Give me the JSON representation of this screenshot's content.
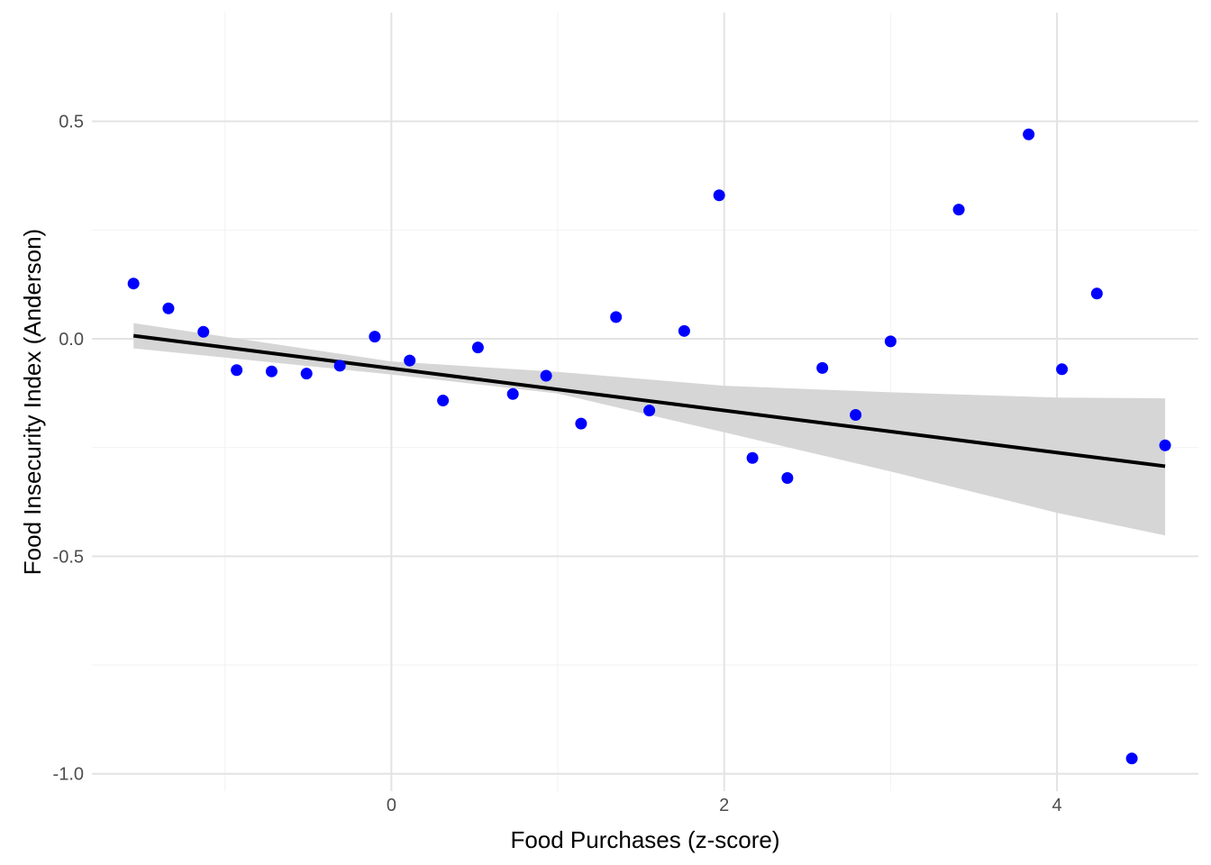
{
  "chart_data": {
    "type": "scatter",
    "title": "",
    "xlabel": "Food Purchases (z-score)",
    "ylabel": "Food Insecurity Index (Anderson)",
    "xlim": [
      -1.8,
      4.85
    ],
    "ylim": [
      -1.04,
      0.75
    ],
    "x_ticks": [
      0,
      2,
      4
    ],
    "x_tick_labels": [
      "0",
      "2",
      "4"
    ],
    "y_ticks": [
      0.5,
      0.0,
      -0.5,
      -1.0
    ],
    "y_tick_labels": [
      "0.5",
      "0.0",
      "-0.5",
      "-1.0"
    ],
    "grid": true,
    "legend": "none",
    "point_color": "#0000ff",
    "line_color": "#000000",
    "band_color": "#d6d6d6",
    "points": [
      {
        "x": -1.55,
        "y": 0.127
      },
      {
        "x": -1.34,
        "y": 0.07
      },
      {
        "x": -1.13,
        "y": 0.016
      },
      {
        "x": -0.93,
        "y": -0.072
      },
      {
        "x": -0.72,
        "y": -0.075
      },
      {
        "x": -0.51,
        "y": -0.08
      },
      {
        "x": -0.31,
        "y": -0.062
      },
      {
        "x": -0.1,
        "y": 0.005
      },
      {
        "x": 0.11,
        "y": -0.05
      },
      {
        "x": 0.31,
        "y": -0.142
      },
      {
        "x": 0.52,
        "y": -0.02
      },
      {
        "x": 0.73,
        "y": -0.127
      },
      {
        "x": 0.93,
        "y": -0.085
      },
      {
        "x": 1.14,
        "y": -0.195
      },
      {
        "x": 1.35,
        "y": 0.05
      },
      {
        "x": 1.55,
        "y": -0.165
      },
      {
        "x": 1.76,
        "y": 0.018
      },
      {
        "x": 1.97,
        "y": 0.33
      },
      {
        "x": 2.17,
        "y": -0.274
      },
      {
        "x": 2.38,
        "y": -0.32
      },
      {
        "x": 2.59,
        "y": -0.067
      },
      {
        "x": 2.79,
        "y": -0.175
      },
      {
        "x": 3.0,
        "y": -0.006
      },
      {
        "x": 3.41,
        "y": 0.297
      },
      {
        "x": 3.83,
        "y": 0.47
      },
      {
        "x": 4.03,
        "y": -0.07
      },
      {
        "x": 4.24,
        "y": 0.104
      },
      {
        "x": 4.45,
        "y": -0.965
      },
      {
        "x": 4.65,
        "y": -0.245
      }
    ],
    "fit_line": {
      "x": [
        -1.55,
        4.65
      ],
      "y": [
        0.007,
        -0.293
      ]
    },
    "confidence_band": {
      "x": [
        -1.55,
        0.0,
        1.0,
        2.0,
        3.0,
        4.0,
        4.65
      ],
      "lower": [
        -0.022,
        -0.082,
        -0.126,
        -0.215,
        -0.305,
        -0.4,
        -0.452
      ],
      "upper": [
        0.036,
        -0.052,
        -0.076,
        -0.108,
        -0.123,
        -0.135,
        -0.137
      ]
    }
  }
}
